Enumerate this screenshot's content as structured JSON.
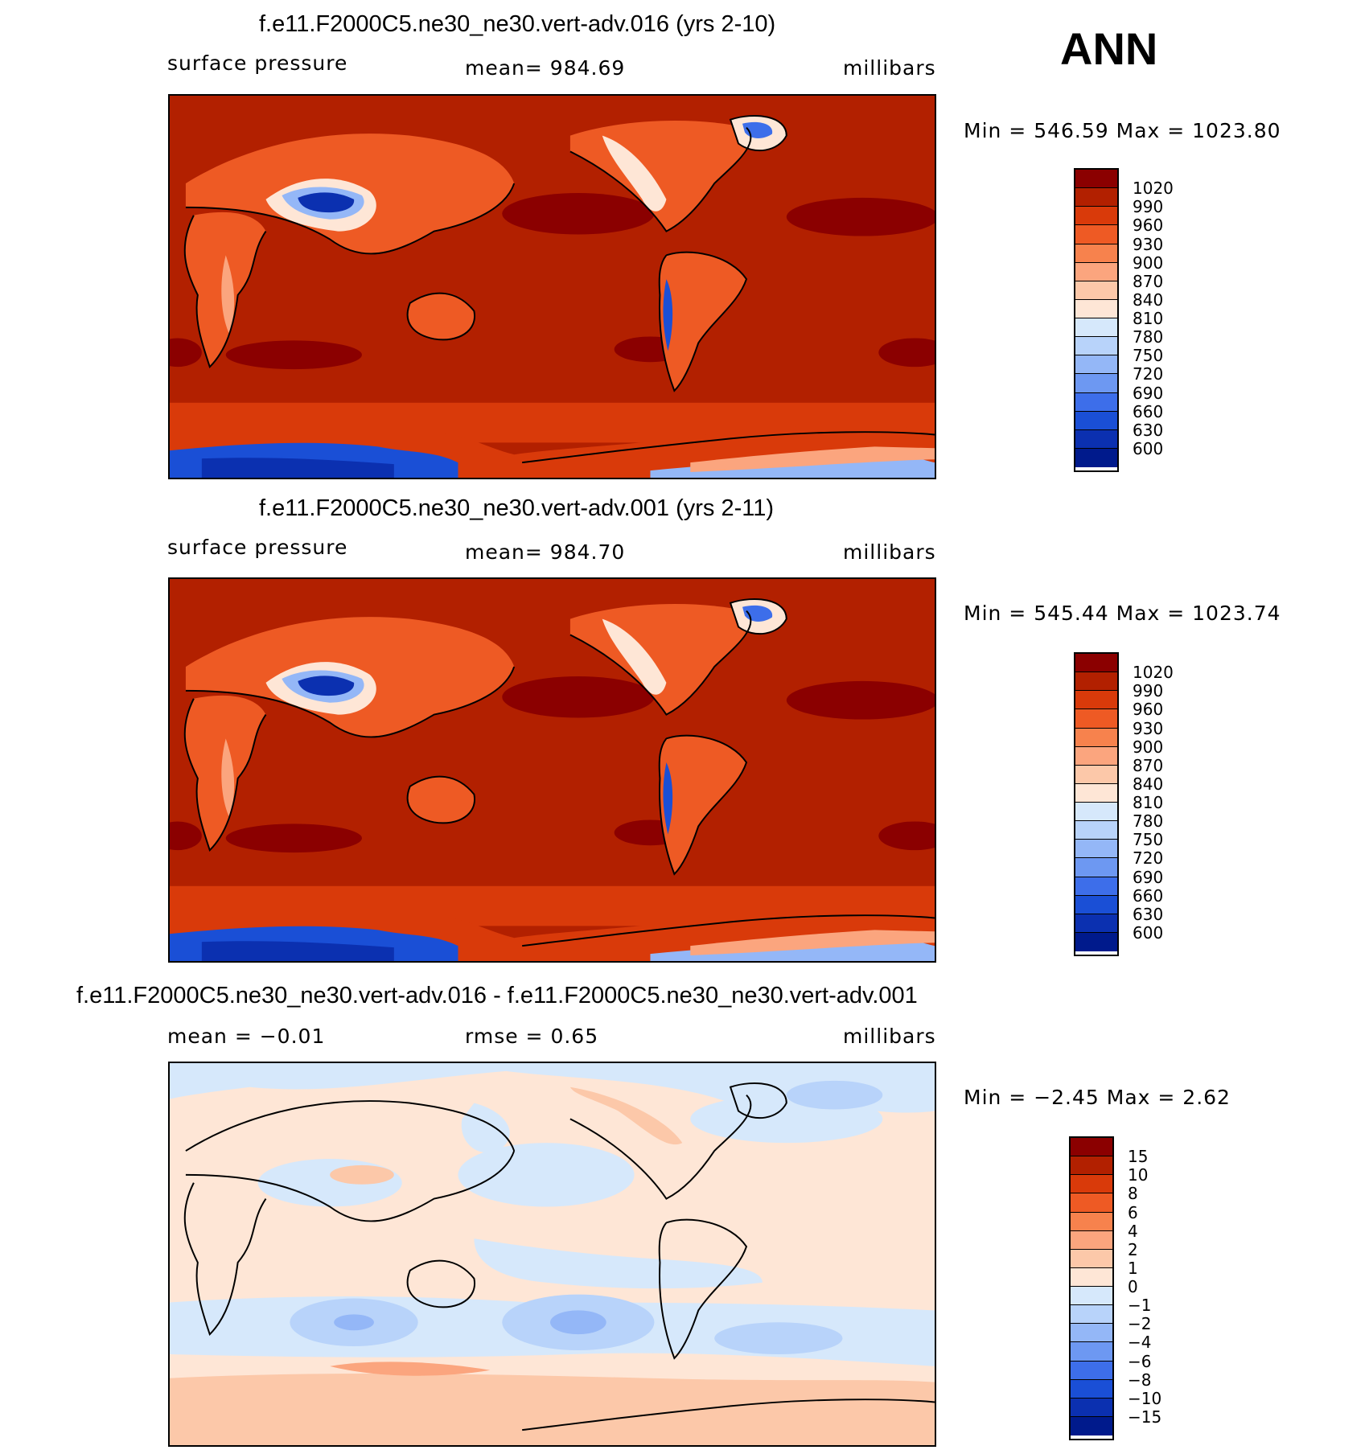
{
  "season": "ANN",
  "panels": [
    {
      "title": "f.e11.F2000C5.ne30_ne30.vert-adv.016 (yrs 2-10)",
      "left_label": "surface  pressure",
      "center_label": "mean=  984.69",
      "units": "millibars",
      "minmax": "Min  =  546.59  Max  =  1023.80"
    },
    {
      "title": "f.e11.F2000C5.ne30_ne30.vert-adv.001 (yrs 2-11)",
      "left_label": "surface  pressure",
      "center_label": "mean=  984.70",
      "units": "millibars",
      "minmax": "Min  =  545.44  Max  =  1023.74"
    },
    {
      "title": "f.e11.F2000C5.ne30_ne30.vert-adv.016 - f.e11.F2000C5.ne30_ne30.vert-adv.001",
      "left_label": "mean  =    −0.01",
      "center_label": "rmse  =      0.65",
      "units": "millibars",
      "minmax": "Min  =    −2.45  Max  =      2.62"
    }
  ],
  "colorbars": {
    "pressure": {
      "labels": [
        "1020",
        "990",
        "960",
        "930",
        "900",
        "870",
        "840",
        "810",
        "780",
        "750",
        "720",
        "690",
        "660",
        "630",
        "600"
      ],
      "colors": [
        "#8b0000",
        "#b22000",
        "#d93a0a",
        "#ee5a24",
        "#f7824d",
        "#fba57e",
        "#fcc8a9",
        "#fee6d6",
        "#d6e8fb",
        "#b8d3fa",
        "#94b7f7",
        "#6d98f2",
        "#3d6eea",
        "#1a4fd6",
        "#0b30b0",
        "#001a8c"
      ]
    },
    "difference": {
      "labels": [
        "15",
        "10",
        "8",
        "6",
        "4",
        "2",
        "1",
        "0",
        "−1",
        "−2",
        "−4",
        "−6",
        "−8",
        "−10",
        "−15"
      ],
      "colors": [
        "#8b0000",
        "#b22000",
        "#d93a0a",
        "#ee5a24",
        "#f7824d",
        "#fba57e",
        "#fcc8a9",
        "#fee6d6",
        "#d6e8fb",
        "#b8d3fa",
        "#94b7f7",
        "#6d98f2",
        "#3d6eea",
        "#1a4fd6",
        "#0b30b0",
        "#001a8c"
      ]
    }
  }
}
